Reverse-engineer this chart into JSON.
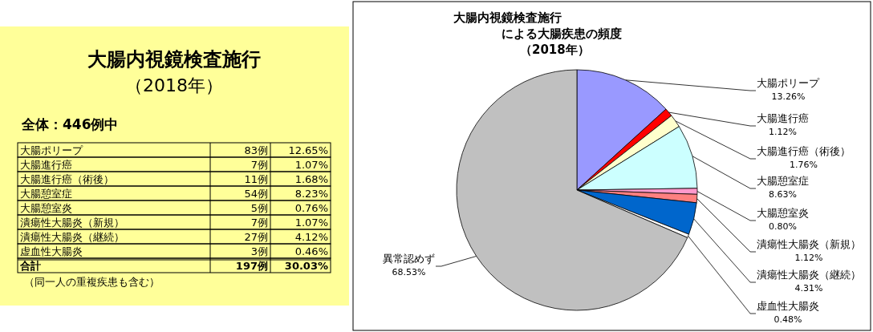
{
  "chart_data": [
    {
      "type": "other",
      "title": "大腸内視鏡検査施行",
      "subtitle": "（2018年）",
      "annotations": [
        "全体：446例中",
        "（同一人の重複疾患も含む）"
      ],
      "categories": [
        "大腸ポリープ",
        "大腸進行癌",
        "大腸進行癌（術後）",
        "大腸憩室症",
        "大腸憩室炎",
        "潰瘍性大腸炎（新規）",
        "潰瘍性大腸炎（継続）",
        "虚血性大腸炎",
        "合計"
      ],
      "series": [
        {
          "values": [
            83,
            7,
            11,
            54,
            5,
            7,
            27,
            3,
            197
          ],
          "value_labels": [
            "83例",
            "7例",
            "11例",
            "54例",
            "5例",
            "7例",
            "27例",
            "3例",
            "197例"
          ]
        },
        {
          "values": [
            12.65,
            1.07,
            1.68,
            8.23,
            0.76,
            1.07,
            4.12,
            0.46,
            30.03
          ],
          "value_labels": [
            "12.65%",
            "1.07%",
            "1.68%",
            "8.23%",
            "0.76%",
            "1.07%",
            "4.12%",
            "0.46%",
            "30.03%"
          ]
        }
      ]
    },
    {
      "type": "pie",
      "title": "大腸内視鏡検査施行による大腸疾患の頻度",
      "subtitle": "（2018年）",
      "categories": [
        "大腸ポリープ",
        "大腸進行癌",
        "大腸進行癌（術後）",
        "大腸憩室症",
        "大腸憩室炎",
        "潰瘍性大腸炎（新規）",
        "潰瘍性大腸炎（継続）",
        "虚血性大腸炎",
        "異常認めず"
      ],
      "values": [
        13.26,
        1.12,
        1.76,
        8.63,
        0.8,
        1.12,
        4.31,
        0.48,
        68.53
      ],
      "value_labels": [
        "13.26%",
        "1.12%",
        "1.76%",
        "8.63%",
        "0.80%",
        "1.12%",
        "4.31%",
        "0.48%",
        "68.53%"
      ],
      "colors": [
        "#9999ff",
        "#ff0000",
        "#ffffcc",
        "#ccffff",
        "#ff99cc",
        "#ff8080",
        "#0066cc",
        "#ffffff",
        "#c0c0c0"
      ]
    }
  ]
}
